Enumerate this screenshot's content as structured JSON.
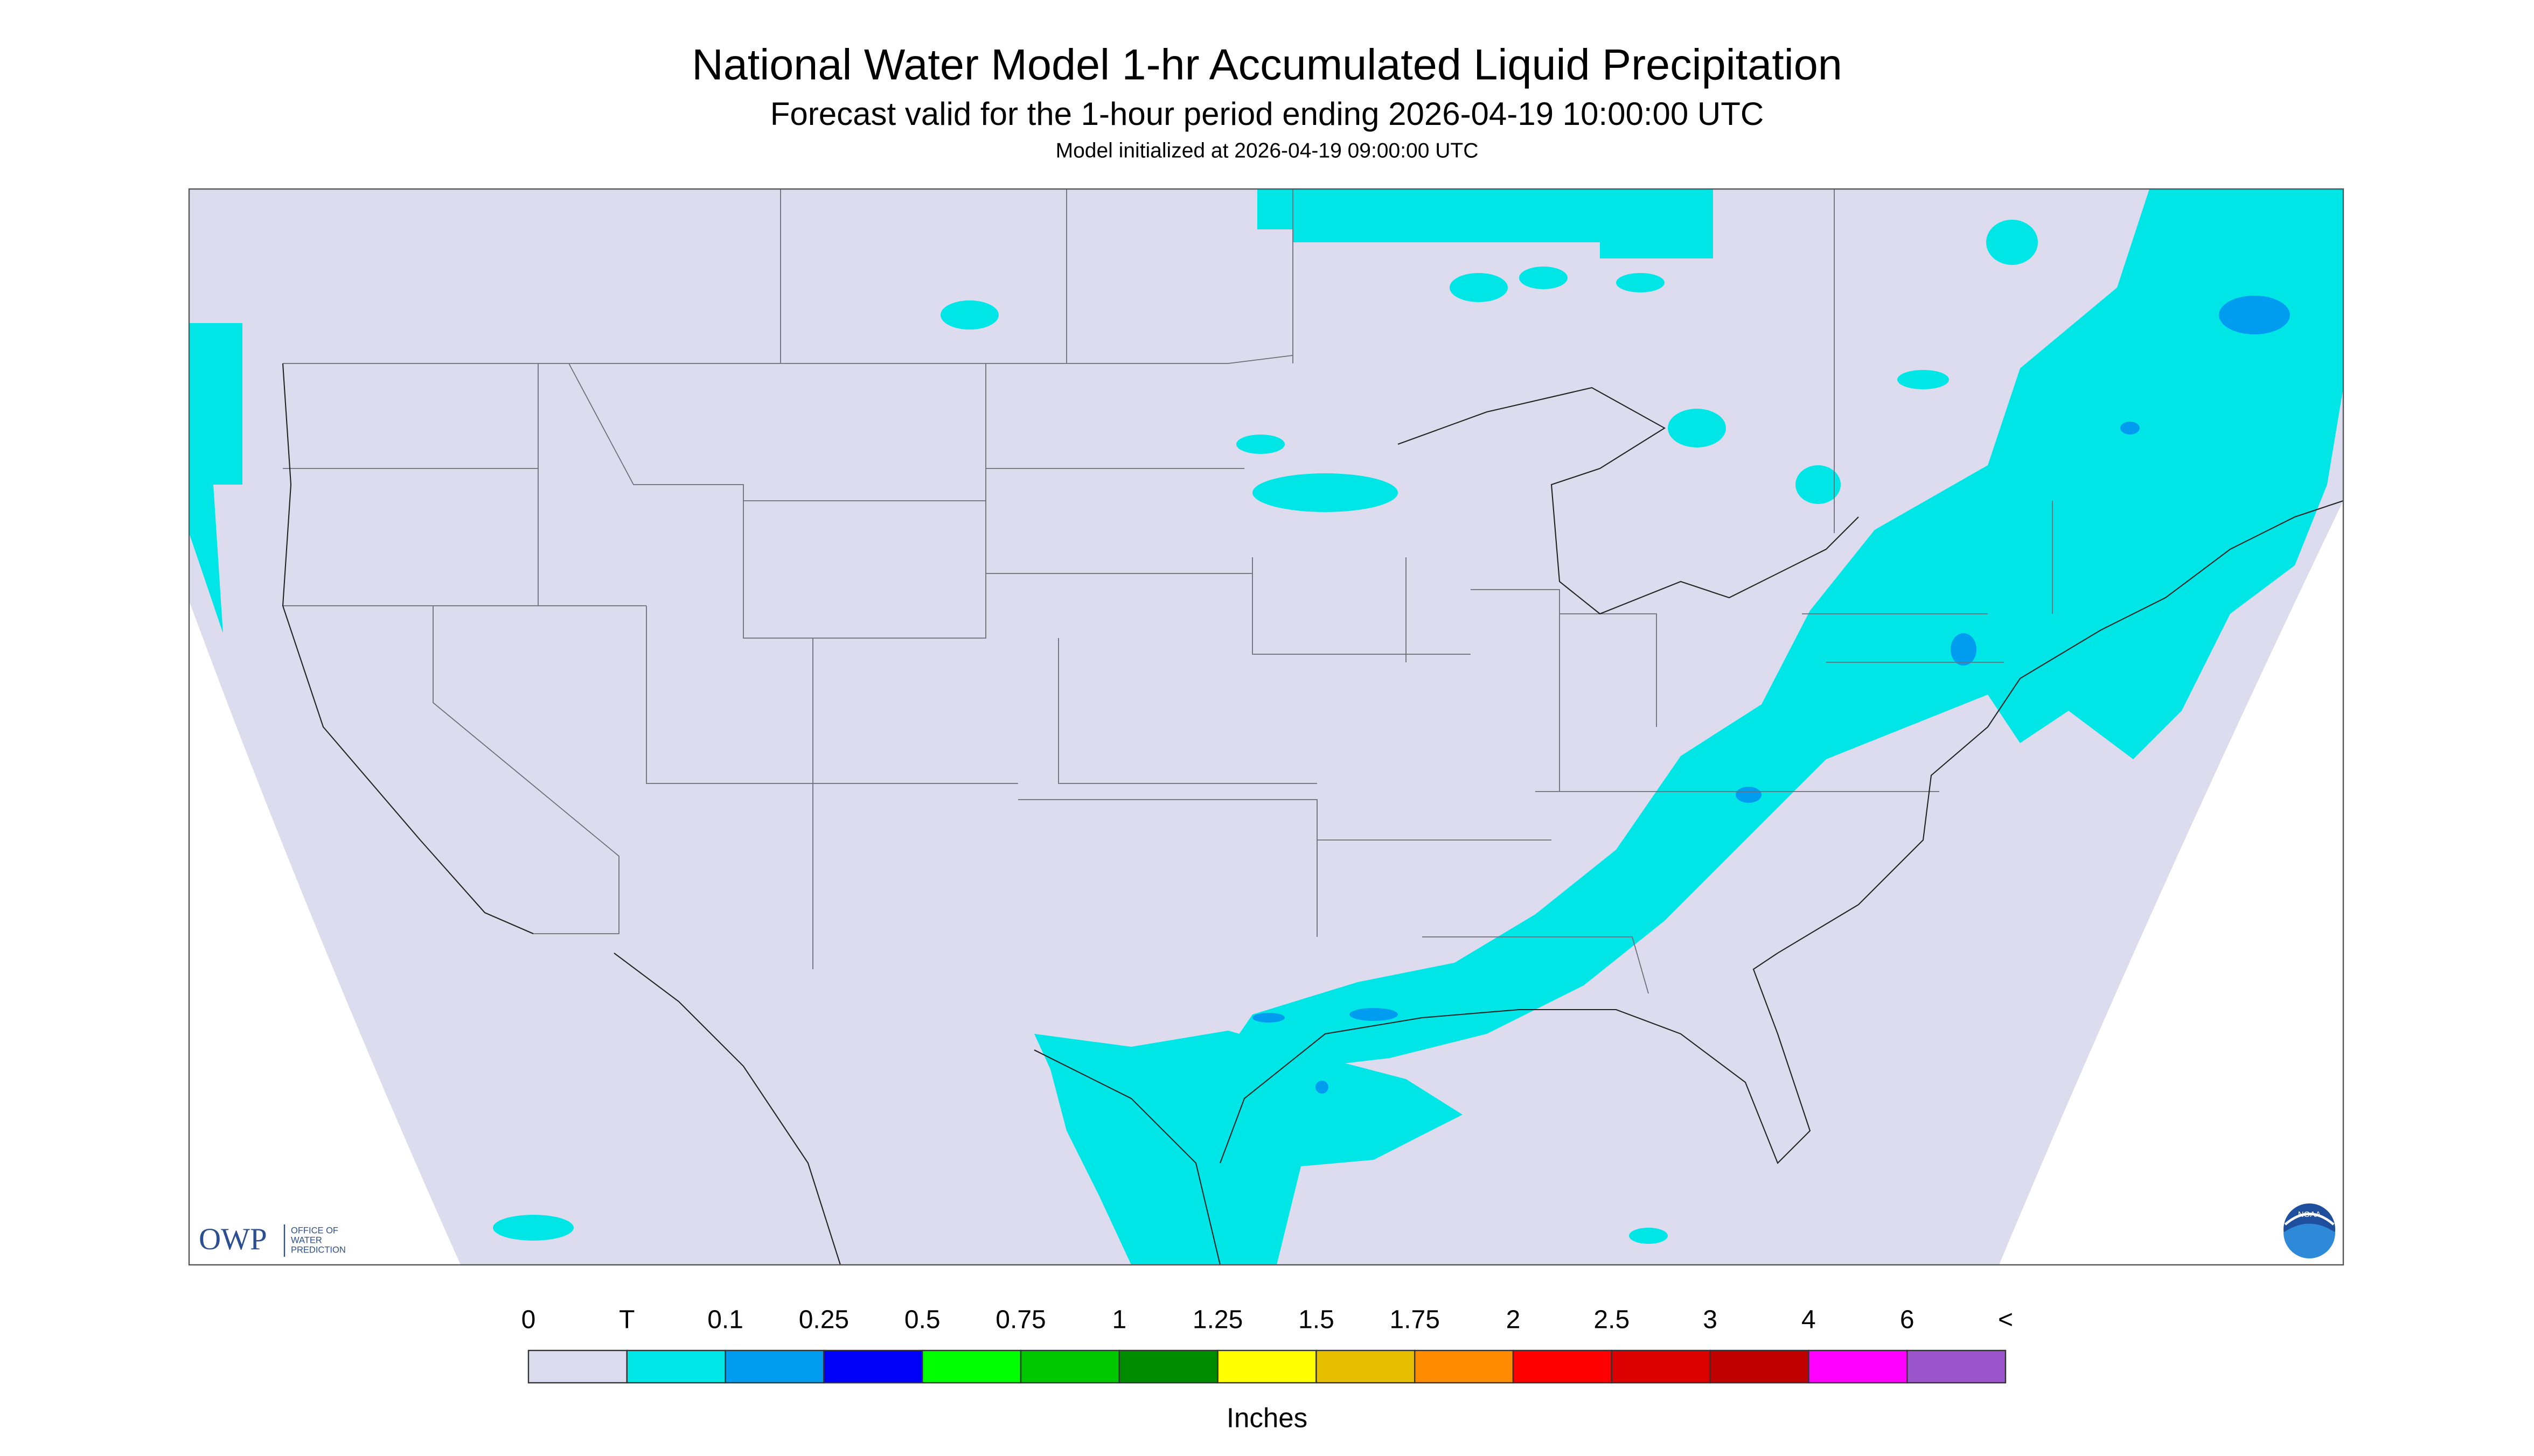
{
  "header": {
    "title": "National Water Model 1-hr Accumulated Liquid Precipitation",
    "subtitle": "Forecast valid for the 1-hour period ending 2026-04-19 10:00:00 UTC",
    "initialized": "Model initialized at 2026-04-19 09:00:00 UTC"
  },
  "logos": {
    "owp": "OWP",
    "owp_name": [
      "OFFICE OF",
      "WATER",
      "PREDICTION"
    ],
    "noaa": "NOAA"
  },
  "colorbar": {
    "labels": [
      "0",
      "T",
      "0.1",
      "0.25",
      "0.5",
      "0.75",
      "1",
      "1.25",
      "1.5",
      "1.75",
      "2",
      "2.5",
      "3",
      "4",
      "6",
      "<"
    ],
    "colors": [
      "#dcdcee",
      "#00e6e6",
      "#009cf0",
      "#0000f6",
      "#00ff00",
      "#00c800",
      "#008c00",
      "#ffff00",
      "#e6be00",
      "#ff8c00",
      "#ff0000",
      "#dc0000",
      "#be0000",
      "#ff00ff",
      "#9955c9"
    ],
    "unit": "Inches"
  }
}
